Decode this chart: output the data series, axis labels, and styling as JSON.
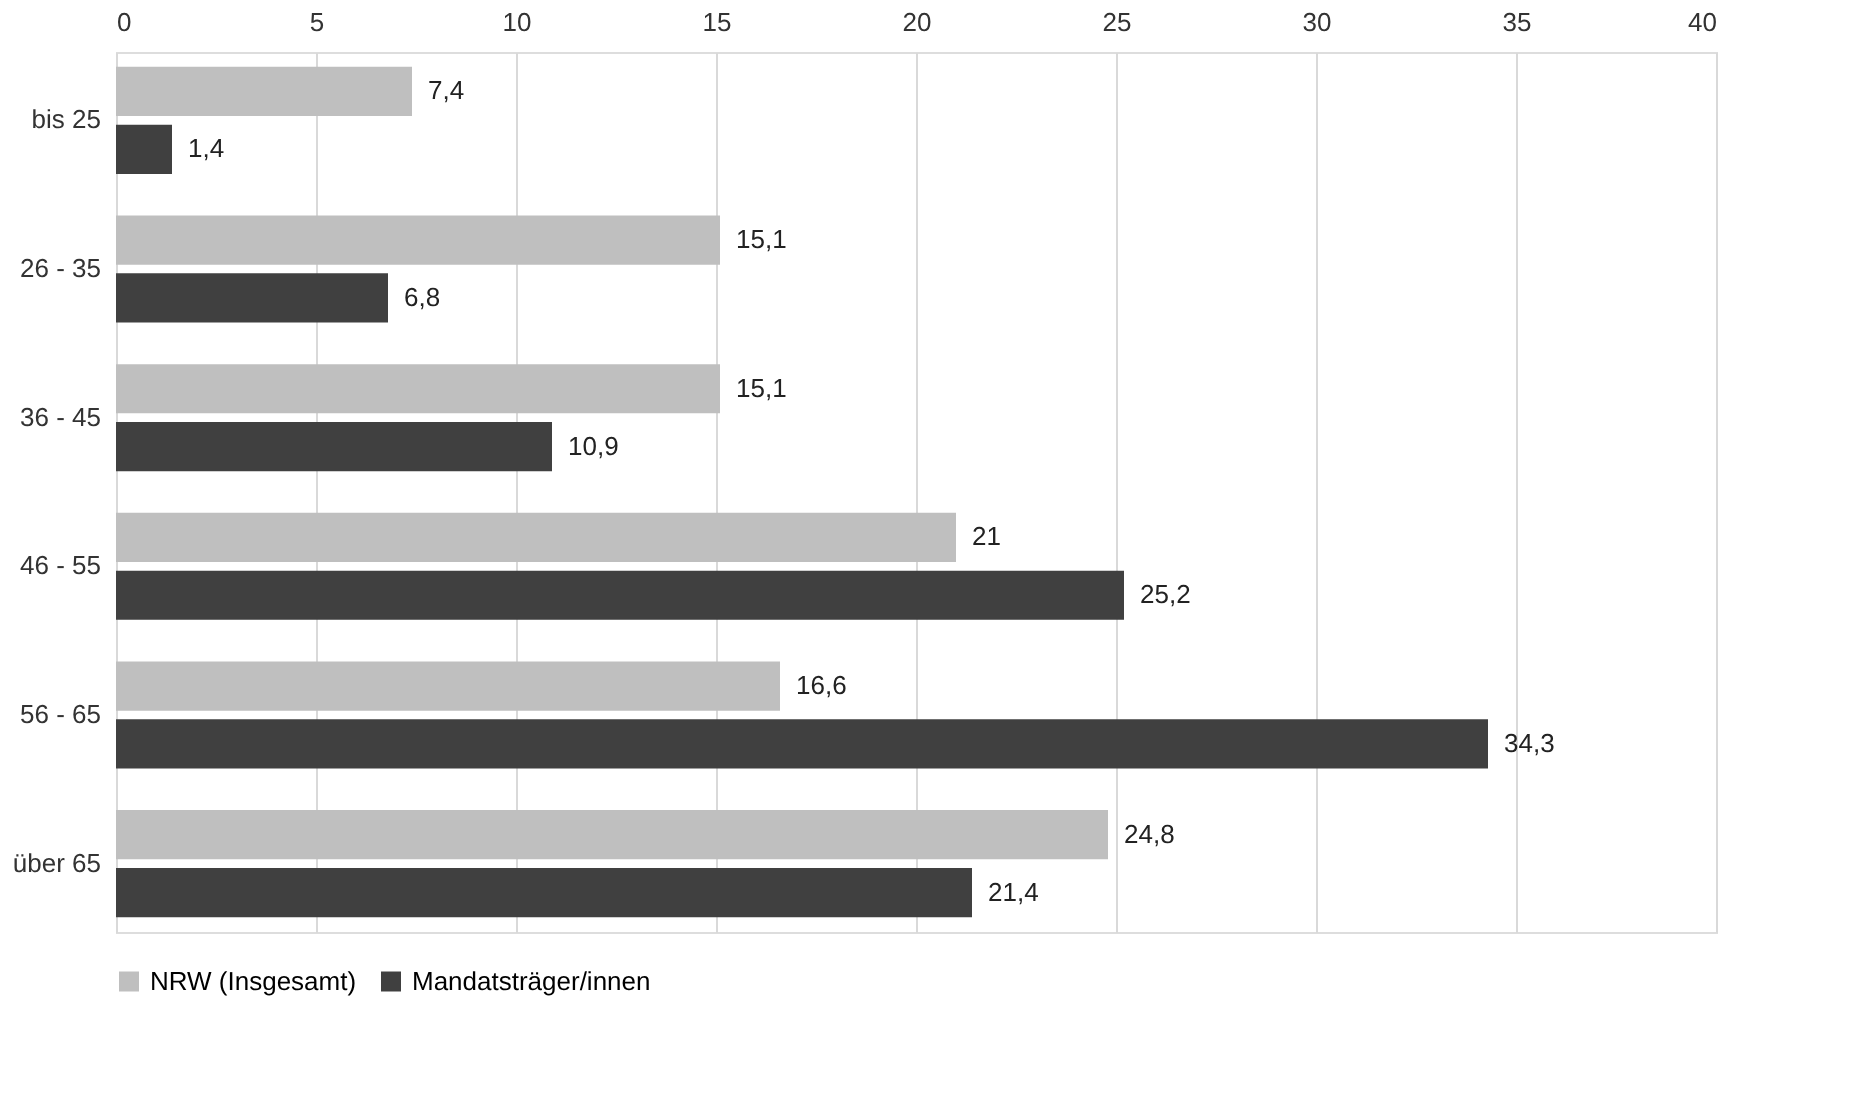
{
  "chart_data": {
    "type": "bar",
    "orientation": "horizontal",
    "categories": [
      "bis 25",
      "26 - 35",
      "36 - 45",
      "46 - 55",
      "56 - 65",
      "über 65"
    ],
    "series": [
      {
        "name": "NRW (Insgesamt)",
        "color": "#bfbfbf",
        "values": [
          7.4,
          15.1,
          15.1,
          21,
          16.6,
          24.8
        ],
        "value_labels": [
          "7,4",
          "15,1",
          "15,1",
          "21",
          "16,6",
          "24,8"
        ]
      },
      {
        "name": "Mandatsträger/innen",
        "color": "#404040",
        "values": [
          1.4,
          6.8,
          10.9,
          25.2,
          34.3,
          21.4
        ],
        "value_labels": [
          "1,4",
          "6,8",
          "10,9",
          "25,2",
          "34,3",
          "21,4"
        ]
      }
    ],
    "xlim": [
      0,
      40
    ],
    "xticks": [
      0,
      5,
      10,
      15,
      20,
      25,
      30,
      35,
      40
    ],
    "grid": "x",
    "legend": "bottom"
  }
}
